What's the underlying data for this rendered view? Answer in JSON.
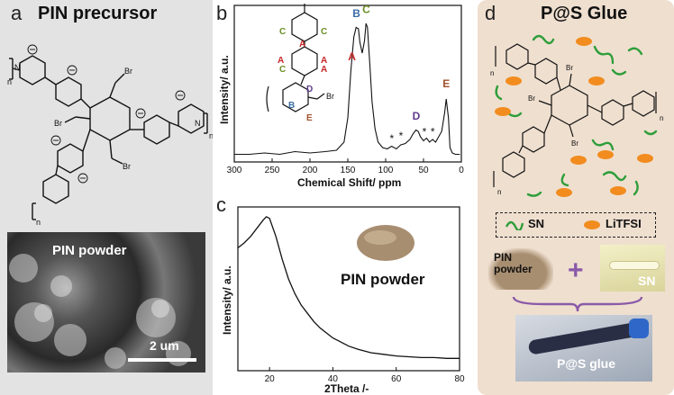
{
  "panels": {
    "a": {
      "letter": "a",
      "title": "PIN precursor",
      "n_label": "n",
      "br_label": "Br",
      "n_plus": "N",
      "image_label": "PIN powder",
      "scale_bar": "2 um"
    },
    "b": {
      "letter": "b",
      "br_label": "Br",
      "peak_labels": [
        "A",
        "B",
        "C",
        "D",
        "E"
      ],
      "struct_letters": [
        "C",
        "C",
        "A",
        "A",
        "A",
        "A",
        "C",
        "B",
        "D",
        "E"
      ],
      "star": "*"
    },
    "c": {
      "letter": "c",
      "photo_label": "PIN powder"
    },
    "d": {
      "letter": "d",
      "title": "P@S Glue",
      "n_label": "n",
      "br_label": "Br",
      "legend": {
        "sn": "SN",
        "litfsi": "LiTFSI"
      },
      "photo_pin": "PIN\npowder",
      "plus": "+",
      "photo_sn": "SN",
      "photo_glue": "P@S glue"
    }
  },
  "chart_data": [
    {
      "type": "line",
      "panel": "b",
      "title": "",
      "xlabel": "Chemical Shift/ ppm",
      "ylabel": "Intensity/ a.u.",
      "xlim": [
        300,
        0
      ],
      "x_reversed": true,
      "xticks": [
        "300",
        "250",
        "200",
        "150",
        "100",
        "50",
        "0"
      ],
      "series": [
        {
          "x": [
            300,
            280,
            260,
            240,
            220,
            200,
            180,
            165,
            155,
            150,
            146,
            142,
            139,
            136,
            134,
            131,
            128,
            126,
            124,
            121,
            118,
            114,
            110,
            104,
            98,
            92,
            86,
            80,
            74,
            68,
            64,
            60,
            57,
            54,
            50,
            46,
            42,
            38,
            34,
            30,
            26,
            22,
            20,
            17,
            15,
            12,
            8,
            4,
            2
          ],
          "y": [
            0.03,
            0.03,
            0.04,
            0.03,
            0.05,
            0.04,
            0.05,
            0.06,
            0.12,
            0.3,
            0.65,
            0.9,
            0.97,
            0.96,
            0.86,
            0.78,
            0.87,
            1.0,
            0.97,
            0.7,
            0.42,
            0.22,
            0.12,
            0.08,
            0.07,
            0.09,
            0.07,
            0.1,
            0.11,
            0.14,
            0.18,
            0.21,
            0.2,
            0.16,
            0.13,
            0.15,
            0.12,
            0.14,
            0.12,
            0.16,
            0.2,
            0.34,
            0.44,
            0.3,
            0.08,
            0.04,
            0.03,
            0.03,
            0.03
          ]
        }
      ],
      "peak_annotations": [
        {
          "label": "A",
          "x": 145,
          "y": 0.7
        },
        {
          "label": "B",
          "x": 139,
          "y": 1.02
        },
        {
          "label": "C",
          "x": 126,
          "y": 1.05
        },
        {
          "label": "D",
          "x": 60,
          "y": 0.26
        },
        {
          "label": "E",
          "x": 20,
          "y": 0.5
        }
      ],
      "stars": [
        {
          "x": 91,
          "y": 0.12
        },
        {
          "x": 79,
          "y": 0.14
        },
        {
          "x": 48,
          "y": 0.17
        },
        {
          "x": 37,
          "y": 0.17
        }
      ]
    },
    {
      "type": "line",
      "panel": "c",
      "title": "",
      "xlabel": "2Theta /-",
      "ylabel": "Intensity/ a.u.",
      "xlim": [
        10,
        80
      ],
      "xticks": [
        "20",
        "40",
        "60",
        "80"
      ],
      "series": [
        {
          "x": [
            10,
            12,
            14,
            16,
            18,
            19,
            20,
            22,
            24,
            26,
            28,
            30,
            32,
            34,
            36,
            38,
            40,
            42,
            45,
            48,
            52,
            56,
            60,
            64,
            68,
            72,
            76,
            80
          ],
          "y": [
            0.75,
            0.78,
            0.82,
            0.87,
            0.92,
            0.94,
            0.93,
            0.82,
            0.68,
            0.56,
            0.47,
            0.4,
            0.35,
            0.3,
            0.26,
            0.23,
            0.2,
            0.18,
            0.15,
            0.13,
            0.11,
            0.1,
            0.09,
            0.085,
            0.08,
            0.08,
            0.075,
            0.075
          ]
        }
      ]
    }
  ]
}
